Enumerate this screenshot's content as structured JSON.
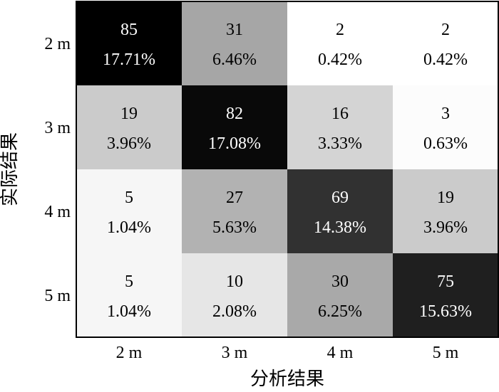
{
  "chart_data": {
    "type": "heatmap",
    "xlabel": "分析结果",
    "ylabel": "实际结果",
    "x_categories": [
      "2 m",
      "3 m",
      "4 m",
      "5 m"
    ],
    "y_categories": [
      "2 m",
      "3 m",
      "4 m",
      "5 m"
    ],
    "counts": [
      [
        85,
        31,
        2,
        2
      ],
      [
        19,
        82,
        16,
        3
      ],
      [
        5,
        27,
        69,
        19
      ],
      [
        5,
        10,
        30,
        75
      ]
    ],
    "percentages": [
      [
        "17.71%",
        "6.46%",
        "0.42%",
        "0.42%"
      ],
      [
        "3.96%",
        "17.08%",
        "3.33%",
        "0.63%"
      ],
      [
        "1.04%",
        "5.63%",
        "14.38%",
        "3.96%"
      ],
      [
        "1.04%",
        "2.08%",
        "6.25%",
        "15.63%"
      ]
    ],
    "colormap": "gray_reversed",
    "legend": "none"
  }
}
